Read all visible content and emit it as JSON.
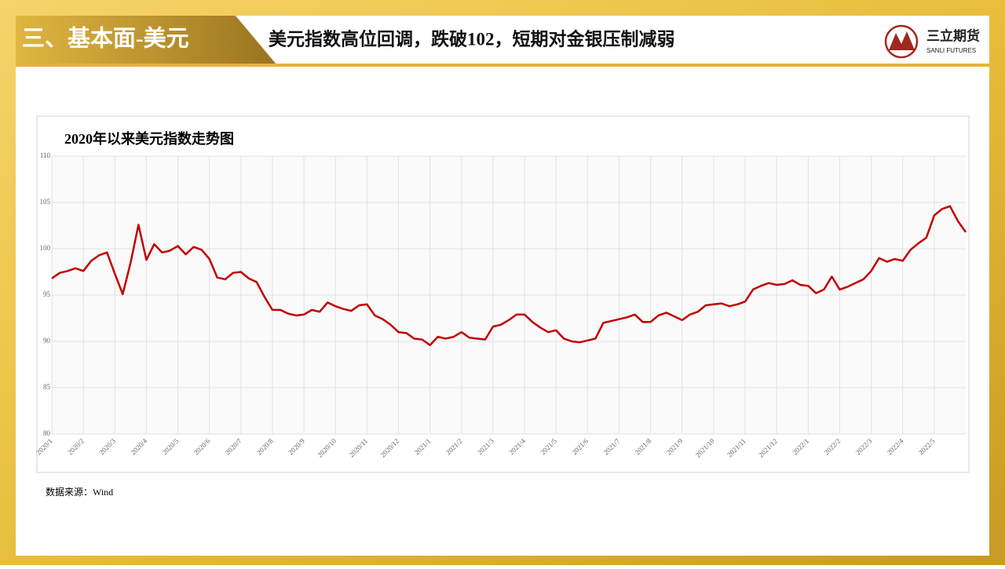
{
  "header": {
    "section": "三、基本面-美元",
    "title": "美元指数高位回调，跌破102，短期对金银压制减弱",
    "logo": "三立期货",
    "logo_sub": "SANLI FUTURES"
  },
  "chart_data": {
    "type": "line",
    "title": "2020年以来美元指数走势图",
    "categories": [
      "2020/1",
      null,
      null,
      null,
      "2020/2",
      null,
      null,
      null,
      "2020/3",
      null,
      null,
      null,
      "2020/4",
      null,
      null,
      null,
      "2020/5",
      null,
      null,
      null,
      "2020/6",
      null,
      null,
      null,
      "2020/7",
      null,
      null,
      null,
      "2020/8",
      null,
      null,
      null,
      "2020/9",
      null,
      null,
      null,
      "2020/10",
      null,
      null,
      null,
      "2020/11",
      null,
      null,
      null,
      "2020/12",
      null,
      null,
      null,
      "2021/1",
      null,
      null,
      null,
      "2021/2",
      null,
      null,
      null,
      "2021/3",
      null,
      null,
      null,
      "2021/4",
      null,
      null,
      null,
      "2021/5",
      null,
      null,
      null,
      "2021/6",
      null,
      null,
      null,
      "2021/7",
      null,
      null,
      null,
      "2021/8",
      null,
      null,
      null,
      "2021/9",
      null,
      null,
      null,
      "2021/10",
      null,
      null,
      null,
      "2021/11",
      null,
      null,
      null,
      "2021/12",
      null,
      null,
      null,
      "2022/1",
      null,
      null,
      null,
      "2022/2",
      null,
      null,
      null,
      "2022/3",
      null,
      null,
      null,
      "2022/4",
      null,
      null,
      null,
      "2022/5",
      null,
      null,
      null,
      null
    ],
    "series": [
      {
        "name": "美元指数",
        "color": "#c00000",
        "values": [
          96.8,
          97.4,
          97.6,
          97.9,
          97.6,
          98.7,
          99.3,
          99.6,
          97.3,
          95.1,
          98.5,
          102.6,
          98.8,
          100.5,
          99.6,
          99.8,
          100.3,
          99.4,
          100.2,
          99.9,
          98.9,
          96.9,
          96.7,
          97.4,
          97.5,
          96.8,
          96.4,
          94.8,
          93.4,
          93.4,
          93.0,
          92.8,
          92.9,
          93.4,
          93.2,
          94.2,
          93.8,
          93.5,
          93.3,
          93.9,
          94.0,
          92.8,
          92.4,
          91.8,
          91.0,
          90.9,
          90.3,
          90.2,
          89.6,
          90.5,
          90.3,
          90.5,
          91.0,
          90.4,
          90.3,
          90.2,
          91.6,
          91.8,
          92.3,
          92.9,
          92.9,
          92.1,
          91.5,
          91.0,
          91.2,
          90.3,
          90.0,
          89.9,
          90.1,
          90.3,
          92.0,
          92.2,
          92.4,
          92.6,
          92.9,
          92.1,
          92.1,
          92.8,
          93.1,
          92.7,
          92.3,
          92.9,
          93.2,
          93.9,
          94.0,
          94.1,
          93.8,
          94.0,
          94.3,
          95.6,
          96.0,
          96.3,
          96.1,
          96.2,
          96.6,
          96.1,
          96.0,
          95.2,
          95.6,
          97.0,
          95.6,
          95.9,
          96.3,
          96.7,
          97.6,
          99.0,
          98.6,
          98.9,
          98.7,
          99.9,
          100.6,
          101.2,
          103.6,
          104.3,
          104.6,
          103.0,
          101.8
        ]
      }
    ],
    "ylim": [
      80,
      110
    ],
    "yticks": [
      80,
      85,
      90,
      95,
      100,
      105,
      110
    ],
    "grid": true
  },
  "source": "数据来源：Wind"
}
